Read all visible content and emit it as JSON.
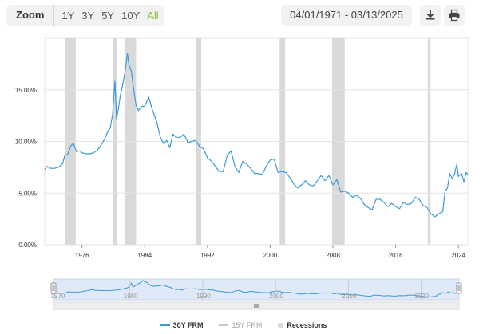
{
  "toolbar": {
    "zoom_label": "Zoom",
    "zoom_options": [
      "1Y",
      "3Y",
      "5Y",
      "10Y",
      "All"
    ],
    "active_zoom": "All",
    "date_range": "04/01/1971 - 03/13/2025",
    "icons": {
      "download": "download-icon",
      "print": "print-icon"
    }
  },
  "colors": {
    "series": "#3a9ad9",
    "recession": "#d9d9d9",
    "active_zoom": "#8cbf3f"
  },
  "legend": [
    {
      "label": "30Y FRM",
      "color": "#3a9ad9",
      "visible": true
    },
    {
      "label": "15Y FRM",
      "color": "#c8c8c8",
      "visible": false
    },
    {
      "label": "Recessions",
      "color": "#d9d9d9",
      "visible": true
    }
  ],
  "navigator": {
    "tick_labels": [
      "1970",
      "1980",
      "1990",
      "2000",
      "2010",
      "2020"
    ]
  },
  "chart_data": {
    "type": "line",
    "title": "",
    "xlabel": "",
    "ylabel": "",
    "xlim": [
      1971.25,
      2025.2
    ],
    "ylim": [
      0,
      20
    ],
    "y_ticks": [
      "0.00%",
      "5.00%",
      "10.00%",
      "15.00%"
    ],
    "x_ticks": [
      "1976",
      "1984",
      "1992",
      "2000",
      "2008",
      "2016",
      "2024"
    ],
    "grid": "horizontal",
    "recessions": [
      [
        1973.9,
        1975.2
      ],
      [
        1980.0,
        1980.5
      ],
      [
        1981.5,
        1982.9
      ],
      [
        1990.5,
        1991.2
      ],
      [
        2001.2,
        2001.9
      ],
      [
        2007.9,
        2009.5
      ],
      [
        2020.1,
        2020.3
      ]
    ],
    "series": [
      {
        "name": "30Y FRM",
        "x": [
          1971.25,
          1971.6,
          1972.0,
          1972.5,
          1973.0,
          1973.5,
          1973.8,
          1974.2,
          1974.6,
          1974.9,
          1975.3,
          1975.7,
          1976.0,
          1976.5,
          1977.0,
          1977.5,
          1978.0,
          1978.5,
          1979.0,
          1979.3,
          1979.6,
          1979.9,
          1980.2,
          1980.4,
          1980.6,
          1980.9,
          1981.2,
          1981.5,
          1981.8,
          1982.0,
          1982.3,
          1982.6,
          1982.9,
          1983.2,
          1983.6,
          1984.0,
          1984.5,
          1985.0,
          1985.5,
          1986.0,
          1986.4,
          1986.8,
          1987.2,
          1987.6,
          1988.0,
          1988.5,
          1989.0,
          1989.5,
          1990.0,
          1990.5,
          1991.0,
          1991.5,
          1992.0,
          1992.5,
          1993.0,
          1993.5,
          1994.0,
          1994.5,
          1995.0,
          1995.5,
          1996.0,
          1996.5,
          1997.0,
          1997.5,
          1998.0,
          1998.5,
          1999.0,
          1999.5,
          2000.0,
          2000.5,
          2001.0,
          2001.5,
          2002.0,
          2002.5,
          2003.0,
          2003.5,
          2004.0,
          2004.5,
          2005.0,
          2005.5,
          2006.0,
          2006.5,
          2007.0,
          2007.5,
          2008.0,
          2008.5,
          2009.0,
          2009.5,
          2010.0,
          2010.5,
          2011.0,
          2011.5,
          2012.0,
          2012.5,
          2013.0,
          2013.5,
          2014.0,
          2014.5,
          2015.0,
          2015.5,
          2016.0,
          2016.5,
          2017.0,
          2017.5,
          2018.0,
          2018.5,
          2019.0,
          2019.5,
          2020.0,
          2020.5,
          2021.0,
          2021.5,
          2022.0,
          2022.3,
          2022.6,
          2022.9,
          2023.2,
          2023.5,
          2023.8,
          2024.0,
          2024.4,
          2024.7,
          2025.0,
          2025.2
        ],
        "y": [
          7.3,
          7.6,
          7.4,
          7.4,
          7.5,
          7.8,
          8.6,
          8.8,
          9.6,
          9.8,
          9.0,
          9.1,
          8.9,
          8.8,
          8.8,
          8.9,
          9.2,
          9.7,
          10.4,
          11.0,
          11.3,
          12.6,
          15.9,
          12.2,
          13.0,
          14.5,
          15.5,
          16.8,
          18.5,
          17.4,
          16.8,
          15.0,
          13.5,
          13.0,
          13.4,
          13.4,
          14.3,
          13.0,
          12.0,
          10.4,
          9.8,
          10.1,
          9.4,
          10.7,
          10.4,
          10.4,
          10.7,
          9.9,
          10.0,
          10.1,
          9.5,
          9.3,
          8.4,
          8.1,
          7.6,
          7.1,
          7.1,
          8.6,
          9.1,
          7.6,
          7.0,
          8.1,
          7.8,
          7.4,
          6.9,
          6.9,
          6.8,
          7.6,
          8.2,
          8.3,
          7.0,
          7.1,
          7.0,
          6.5,
          5.9,
          5.5,
          5.8,
          6.2,
          5.8,
          5.7,
          6.2,
          6.7,
          6.2,
          6.7,
          5.8,
          6.3,
          5.1,
          5.2,
          5.0,
          4.6,
          4.8,
          4.5,
          3.9,
          3.6,
          3.4,
          4.4,
          4.4,
          4.1,
          3.7,
          4.0,
          3.7,
          3.5,
          4.1,
          3.9,
          4.0,
          4.6,
          4.4,
          3.8,
          3.6,
          3.0,
          2.7,
          3.0,
          3.2,
          5.2,
          5.5,
          6.9,
          6.4,
          6.8,
          7.8,
          6.6,
          6.9,
          6.1,
          7.0,
          6.8
        ]
      }
    ]
  }
}
